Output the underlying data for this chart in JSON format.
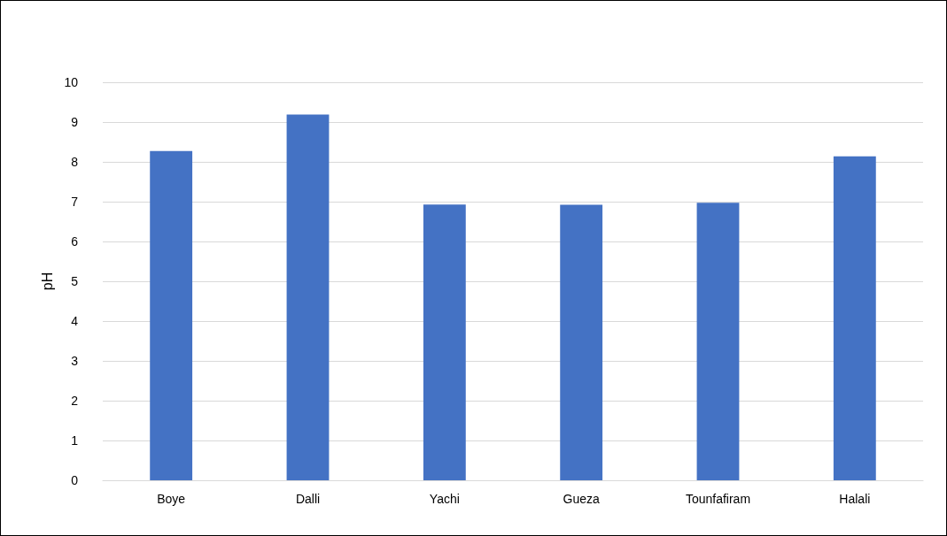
{
  "chart_data": {
    "type": "bar",
    "ylabel": "pH",
    "categories": [
      "Boye",
      "Dalli",
      "Yachi",
      "Gueza",
      "Tounfafiram",
      "Halali"
    ],
    "values": [
      8.27,
      9.19,
      6.93,
      6.92,
      6.97,
      8.14
    ],
    "color": "#4472c4",
    "ylim": [
      0,
      10
    ],
    "yticks": [
      0,
      1,
      2,
      3,
      4,
      5,
      6,
      7,
      8,
      9,
      10
    ],
    "grid": "y"
  }
}
